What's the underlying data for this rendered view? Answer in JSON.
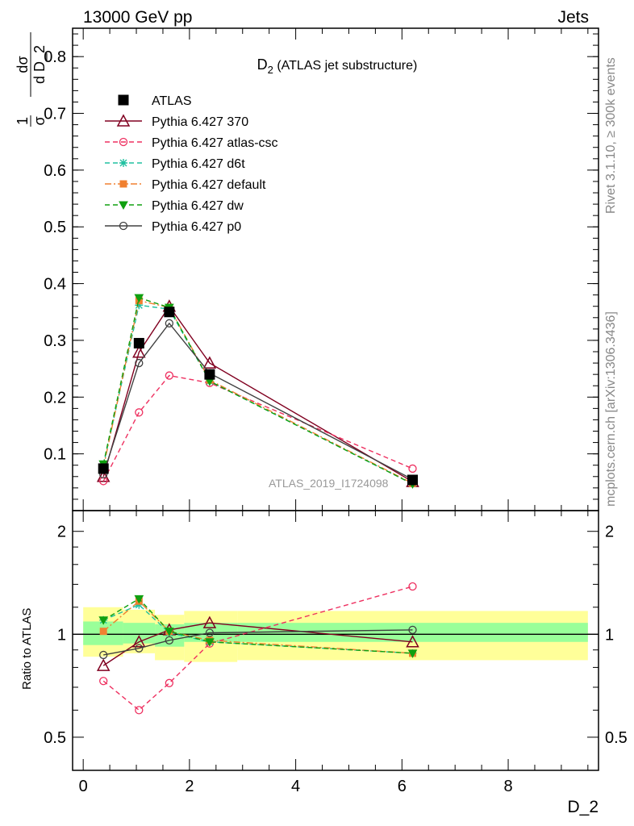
{
  "header": {
    "left": "13000 GeV pp",
    "right": "Jets"
  },
  "side_labels": {
    "rivet": "Rivet 3.1.10, ≥ 300k events",
    "mcplots": "mcplots.cern.ch [arXiv:1306.3436]"
  },
  "watermark": "ATLAS_2019_I1724098",
  "main_title": {
    "main": "D",
    "sub": "2",
    "rest": " (ATLAS jet substructure)"
  },
  "ylabel_main": {
    "part1": "d",
    "frac1_num": "1",
    "frac1_den": "σ",
    "frac2_num": "dσ",
    "frac2_den": "d D_2"
  },
  "ylabel_ratio": "Ratio to ATLAS",
  "xlabel": "D_2",
  "colors": {
    "atlas": "#000000",
    "p370": "#800020",
    "atlascsc": "#ee3060",
    "d6t": "#20c0a0",
    "default": "#f08030",
    "dw": "#10a010",
    "p0": "#404040",
    "band_inner": "#99ff99",
    "band_outer": "#ffff99"
  },
  "chart_data": [
    {
      "type": "line",
      "panel": "main",
      "xlim": [
        -0.2,
        9.7
      ],
      "ylim": [
        0,
        0.85
      ],
      "yticks": [
        0.1,
        0.2,
        0.3,
        0.4,
        0.5,
        0.6,
        0.7,
        0.8
      ],
      "ytick_labels": [
        "0.1",
        "0.2",
        "0.3",
        "0.4",
        "0.5",
        "0.6",
        "0.7",
        "0.8"
      ],
      "legend_placement": "top-left",
      "series": [
        {
          "name": "ATLAS",
          "key": "atlas",
          "marker": "square",
          "dash": "none",
          "x": [
            0.38,
            1.05,
            1.62,
            2.38,
            6.2
          ],
          "y": [
            0.074,
            0.295,
            0.35,
            0.24,
            0.054
          ]
        },
        {
          "name": "Pythia 6.427 370",
          "key": "p370",
          "marker": "triangle-open",
          "dash": "solid",
          "x": [
            0.38,
            1.05,
            1.62,
            2.38,
            6.2
          ],
          "y": [
            0.06,
            0.279,
            0.36,
            0.26,
            0.051
          ]
        },
        {
          "name": "Pythia 6.427 atlas-csc",
          "key": "atlascsc",
          "marker": "circle-open",
          "dash": "dashed",
          "x": [
            0.38,
            1.05,
            1.62,
            2.38,
            6.2
          ],
          "y": [
            0.052,
            0.173,
            0.238,
            0.225,
            0.074
          ]
        },
        {
          "name": "Pythia 6.427 d6t",
          "key": "d6t",
          "marker": "star",
          "dash": "dashed",
          "x": [
            0.38,
            1.05,
            1.62,
            2.38,
            6.2
          ],
          "y": [
            0.08,
            0.362,
            0.355,
            0.228,
            0.047
          ]
        },
        {
          "name": "Pythia 6.427 default",
          "key": "default",
          "marker": "square-small",
          "dash": "dashdot",
          "x": [
            0.38,
            1.05,
            1.62,
            2.38,
            6.2
          ],
          "y": [
            0.076,
            0.37,
            0.358,
            0.23,
            0.048
          ]
        },
        {
          "name": "Pythia 6.427 dw",
          "key": "dw",
          "marker": "triangle-down",
          "dash": "dashed",
          "x": [
            0.38,
            1.05,
            1.62,
            2.38,
            6.2
          ],
          "y": [
            0.082,
            0.375,
            0.358,
            0.228,
            0.047
          ]
        },
        {
          "name": "Pythia 6.427 p0",
          "key": "p0",
          "marker": "circle-open",
          "dash": "solid",
          "x": [
            0.38,
            1.05,
            1.62,
            2.38,
            6.2
          ],
          "y": [
            0.064,
            0.26,
            0.33,
            0.242,
            0.055
          ]
        }
      ]
    },
    {
      "type": "line",
      "panel": "ratio",
      "xlim": [
        -0.2,
        9.7
      ],
      "ylim": [
        0.4,
        2.3
      ],
      "log_y": true,
      "yticks": [
        0.5,
        1,
        2
      ],
      "ytick_labels": [
        "0.5",
        "1",
        "2"
      ],
      "xticks": [
        0,
        2,
        4,
        6,
        8
      ],
      "xtick_labels": [
        "0",
        "2",
        "4",
        "6",
        "8"
      ],
      "bands": [
        {
          "x0": 0.0,
          "x1": 0.75,
          "inner": [
            0.93,
            1.09
          ],
          "outer": [
            0.86,
            1.2
          ]
        },
        {
          "x0": 0.75,
          "x1": 1.35,
          "inner": [
            0.94,
            1.08
          ],
          "outer": [
            0.88,
            1.18
          ]
        },
        {
          "x0": 1.35,
          "x1": 1.9,
          "inner": [
            0.92,
            1.07
          ],
          "outer": [
            0.84,
            1.14
          ]
        },
        {
          "x0": 1.9,
          "x1": 2.9,
          "inner": [
            0.95,
            1.08
          ],
          "outer": [
            0.83,
            1.17
          ]
        },
        {
          "x0": 2.9,
          "x1": 9.5,
          "inner": [
            0.95,
            1.08
          ],
          "outer": [
            0.84,
            1.17
          ]
        }
      ],
      "series": [
        {
          "name": "Pythia 6.427 370",
          "key": "p370",
          "marker": "triangle-open",
          "dash": "solid",
          "x": [
            0.38,
            1.05,
            1.62,
            2.38,
            6.2
          ],
          "y": [
            0.81,
            0.95,
            1.03,
            1.08,
            0.95
          ]
        },
        {
          "name": "Pythia 6.427 atlas-csc",
          "key": "atlascsc",
          "marker": "circle-open",
          "dash": "dashed",
          "x": [
            0.38,
            1.05,
            1.62,
            2.38,
            6.2
          ],
          "y": [
            0.73,
            0.6,
            0.72,
            0.94,
            1.38
          ]
        },
        {
          "name": "Pythia 6.427 d6t",
          "key": "d6t",
          "marker": "star",
          "dash": "dashed",
          "x": [
            0.38,
            1.05,
            1.62,
            2.38,
            6.2
          ],
          "y": [
            1.1,
            1.22,
            1.01,
            0.95,
            0.88
          ]
        },
        {
          "name": "Pythia 6.427 default",
          "key": "default",
          "marker": "square-small",
          "dash": "dashdot",
          "x": [
            0.38,
            1.05,
            1.62,
            2.38,
            6.2
          ],
          "y": [
            1.02,
            1.25,
            1.02,
            0.96,
            0.88
          ]
        },
        {
          "name": "Pythia 6.427 dw",
          "key": "dw",
          "marker": "triangle-down",
          "dash": "dashed",
          "x": [
            0.38,
            1.05,
            1.62,
            2.38,
            6.2
          ],
          "y": [
            1.1,
            1.27,
            1.02,
            0.95,
            0.88
          ]
        },
        {
          "name": "Pythia 6.427 p0",
          "key": "p0",
          "marker": "circle-open",
          "dash": "solid",
          "x": [
            0.38,
            1.05,
            1.62,
            2.38,
            6.2
          ],
          "y": [
            0.87,
            0.91,
            0.96,
            1.01,
            1.03
          ]
        }
      ]
    }
  ]
}
